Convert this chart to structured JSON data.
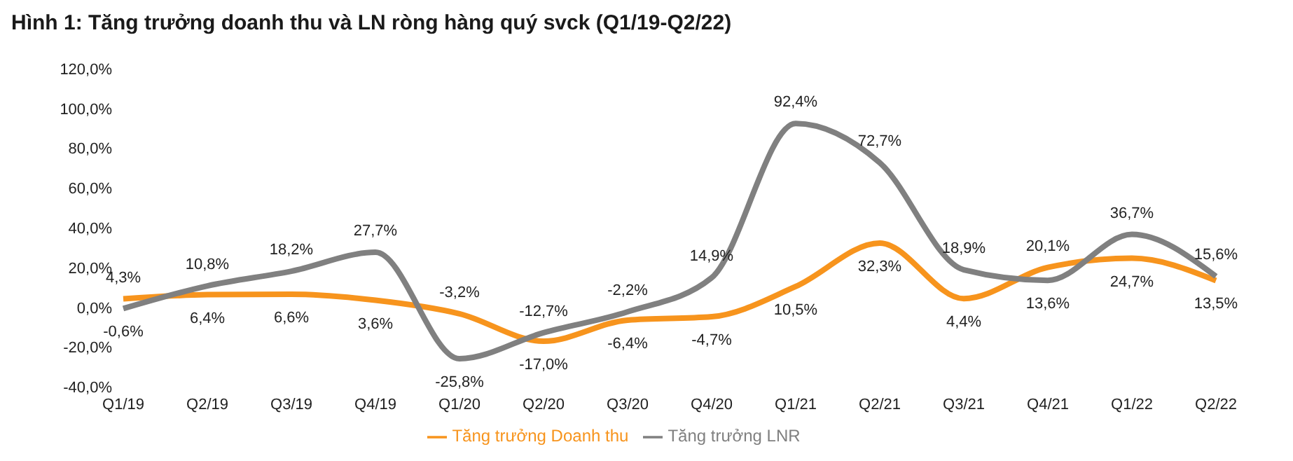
{
  "chart_data": {
    "type": "line",
    "title": "Hình 1: Tăng trưởng doanh thu và LN ròng hàng quý svck (Q1/19-Q2/22)",
    "categories": [
      "Q1/19",
      "Q2/19",
      "Q3/19",
      "Q4/19",
      "Q1/20",
      "Q2/20",
      "Q3/20",
      "Q4/20",
      "Q1/21",
      "Q2/21",
      "Q3/21",
      "Q4/21",
      "Q1/22",
      "Q2/22"
    ],
    "series": [
      {
        "name": "Tăng trưởng Doanh thu",
        "color": "#f7941d",
        "values": [
          4.3,
          6.4,
          6.6,
          3.6,
          -3.2,
          -17.0,
          -6.4,
          -4.7,
          10.5,
          32.3,
          4.4,
          20.1,
          24.7,
          13.5
        ],
        "value_labels": [
          "4,3%",
          "6,4%",
          "6,6%",
          "3,6%",
          "-3,2%",
          "-17,0%",
          "-6,4%",
          "-4,7%",
          "10,5%",
          "32,3%",
          "4,4%",
          "20,1%",
          "24,7%",
          "13,5%"
        ]
      },
      {
        "name": "Tăng trưởng LNR",
        "color": "#808080",
        "values": [
          -0.6,
          10.8,
          18.2,
          27.7,
          -25.8,
          -12.7,
          -2.2,
          14.9,
          92.4,
          72.7,
          18.9,
          13.6,
          36.7,
          15.6
        ],
        "value_labels": [
          "-0,6%",
          "10,8%",
          "18,2%",
          "27,7%",
          "-25,8%",
          "-12,7%",
          "-2,2%",
          "14,9%",
          "92,4%",
          "72,7%",
          "18,9%",
          "13,6%",
          "36,7%",
          "15,6%"
        ]
      }
    ],
    "ylim": [
      -40,
      120
    ],
    "yticks": [
      {
        "value": -40,
        "label": "-40,0%"
      },
      {
        "value": -20,
        "label": "-20,0%"
      },
      {
        "value": 0,
        "label": "0,0%"
      },
      {
        "value": 20,
        "label": "20,0%"
      },
      {
        "value": 40,
        "label": "40,0%"
      },
      {
        "value": 60,
        "label": "60,0%"
      },
      {
        "value": 80,
        "label": "80,0%"
      },
      {
        "value": 100,
        "label": "100,0%"
      },
      {
        "value": 120,
        "label": "120,0%"
      }
    ],
    "grid": false,
    "legend": "bottom",
    "marker": "none",
    "line_style": "solid"
  }
}
